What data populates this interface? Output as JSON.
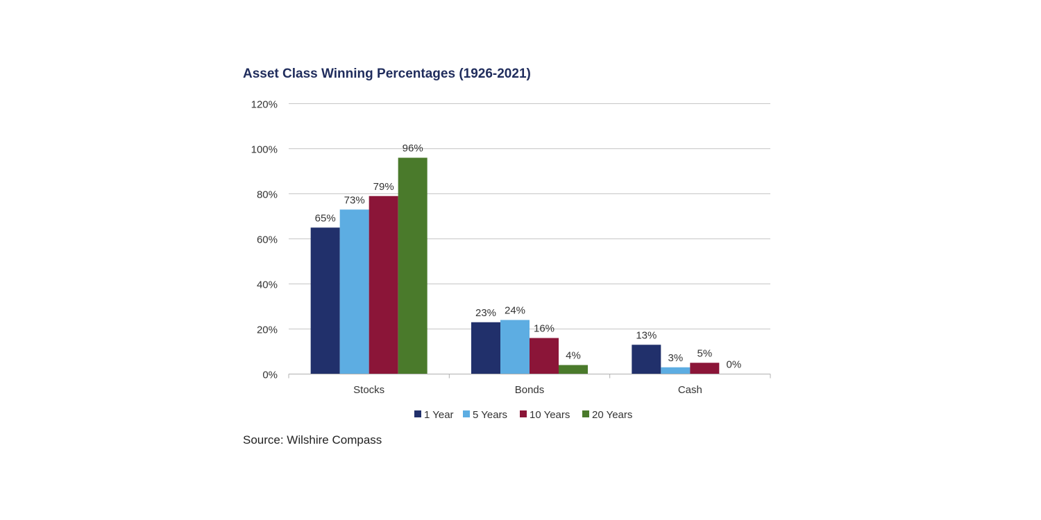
{
  "chart_data": {
    "type": "bar",
    "title": "Asset Class Winning Percentages (1926-2021)",
    "categories": [
      "Stocks",
      "Bonds",
      "Cash"
    ],
    "series": [
      {
        "name": "1 Year",
        "color": "#21306b",
        "values": [
          65,
          23,
          13
        ],
        "labels": [
          "65%",
          "23%",
          "13%"
        ]
      },
      {
        "name": "5 Years",
        "color": "#5dade2",
        "values": [
          73,
          24,
          3
        ],
        "labels": [
          "73%",
          "24%",
          "3%"
        ]
      },
      {
        "name": "10 Years",
        "color": "#8b1538",
        "values": [
          79,
          16,
          5
        ],
        "labels": [
          "79%",
          "16%",
          "5%"
        ]
      },
      {
        "name": "20 Years",
        "color": "#4a7a2b",
        "values": [
          96,
          4,
          0
        ],
        "labels": [
          "96%",
          "4%",
          "0%"
        ]
      }
    ],
    "ylim": [
      0,
      120
    ],
    "yticks": [
      0,
      20,
      40,
      60,
      80,
      100,
      120
    ],
    "ytick_labels": [
      "0%",
      "20%",
      "40%",
      "60%",
      "80%",
      "100%",
      "120%"
    ],
    "grid": true,
    "legend_position": "bottom-center",
    "source": "Source: Wilshire Compass"
  }
}
